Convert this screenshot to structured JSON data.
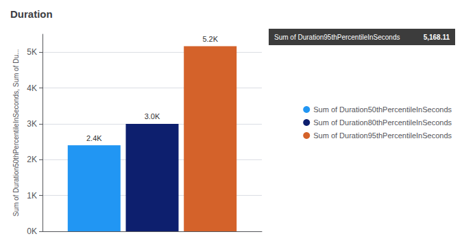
{
  "chart_data": {
    "type": "bar",
    "title": "Duration",
    "ylabel": "Sum of Duration50thPercentileInSeconds, Sum of Du...",
    "categories": [
      null
    ],
    "series": [
      {
        "name": "Sum of Duration50thPercentileInSeconds",
        "color": "#2196F3",
        "values": [
          2400
        ],
        "value_labels": [
          "2.4K"
        ]
      },
      {
        "name": "Sum of Duration80thPercentileInSeconds",
        "color": "#0D1F6E",
        "values": [
          3000
        ],
        "value_labels": [
          "3.0K"
        ]
      },
      {
        "name": "Sum of Duration95thPercentileInSeconds",
        "color": "#D4622A",
        "values": [
          5168.11
        ],
        "value_labels": [
          "5.2K"
        ]
      }
    ],
    "ylim": [
      0,
      5500
    ],
    "yticks": [
      {
        "value": 0,
        "label": "0K"
      },
      {
        "value": 1000,
        "label": "1K"
      },
      {
        "value": 2000,
        "label": "2K"
      },
      {
        "value": 3000,
        "label": "3K"
      },
      {
        "value": 4000,
        "label": "4K"
      },
      {
        "value": 5000,
        "label": "5K"
      }
    ],
    "grid": true,
    "legend": "right",
    "data_labels": true,
    "tick_labels": "y",
    "annotations": [
      {
        "text": "Sum of Duration95thPercentileInSeconds",
        "value": 5168.11,
        "label": "5,168.11"
      }
    ]
  }
}
